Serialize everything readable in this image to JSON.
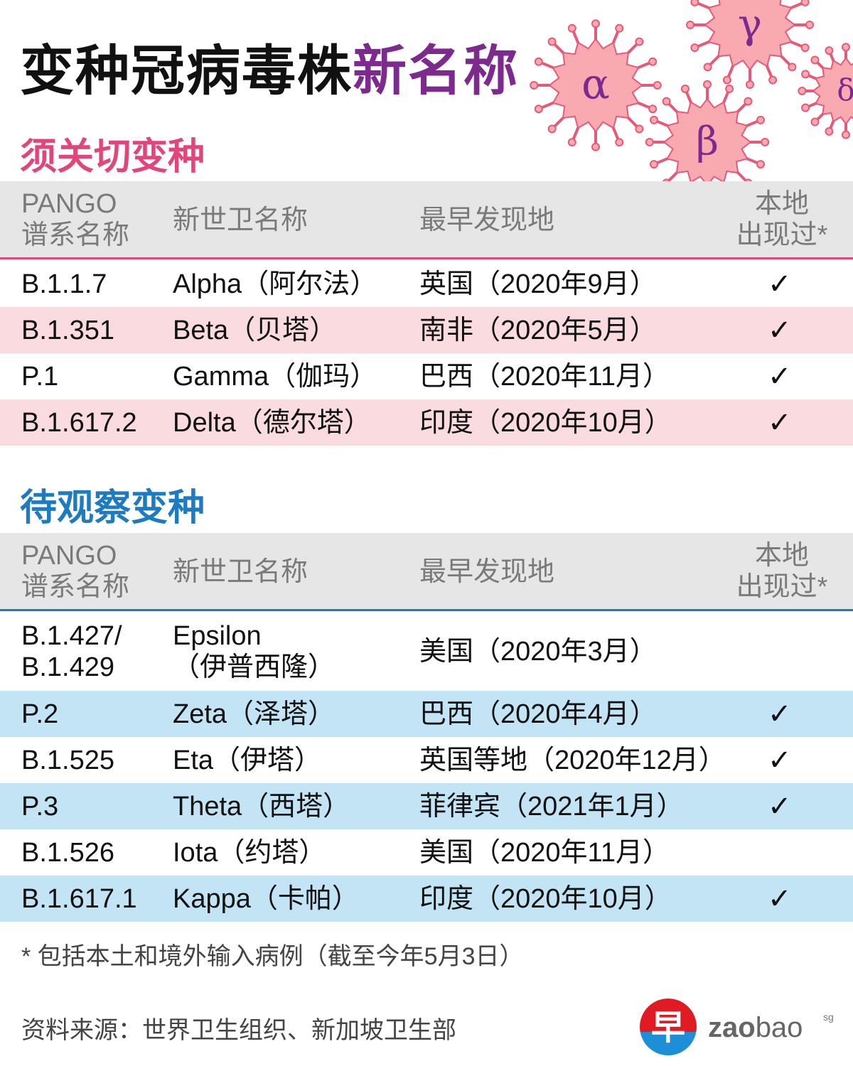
{
  "title": {
    "part1": "变种冠病毒株",
    "part2": "新名称"
  },
  "virus_letters": [
    "α",
    "β",
    "γ",
    "δ"
  ],
  "colors": {
    "accent_purple": "#7d2a8e",
    "concern": "#e0457b",
    "concern_row": "#fadbe0",
    "interest": "#1f7bbf",
    "interest_row": "#c2e4f5",
    "header_bg": "#e6e6e6",
    "virus_fill": "#f9a9b0",
    "virus_stroke": "#e65a78"
  },
  "columns": {
    "pango_line1": "PANGO",
    "pango_line2": "谱系名称",
    "who": "新世卫名称",
    "origin": "最早发现地",
    "local_line1": "本地",
    "local_line2": "出现过*"
  },
  "concern": {
    "title": "须关切变种",
    "rows": [
      {
        "pango": "B.1.1.7",
        "who": "Alpha（阿尔法）",
        "origin": "英国（2020年9月）",
        "local": "✓"
      },
      {
        "pango": "B.1.351",
        "who": "Beta（贝塔）",
        "origin": "南非（2020年5月）",
        "local": "✓"
      },
      {
        "pango": "P.1",
        "who": "Gamma（伽玛）",
        "origin": "巴西（2020年11月）",
        "local": "✓"
      },
      {
        "pango": "B.1.617.2",
        "who": "Delta（德尔塔）",
        "origin": "印度（2020年10月）",
        "local": "✓"
      }
    ]
  },
  "interest": {
    "title": "待观察变种",
    "rows": [
      {
        "pango": "B.1.427/",
        "pango2": "B.1.429",
        "who": "Epsilon",
        "who2": "（伊普西隆）",
        "origin": "美国（2020年3月）",
        "local": ""
      },
      {
        "pango": "P.2",
        "who": "Zeta（泽塔）",
        "origin": "巴西（2020年4月）",
        "local": "✓"
      },
      {
        "pango": "B.1.525",
        "who": "Eta（伊塔）",
        "origin": "英国等地（2020年12月）",
        "local": "✓"
      },
      {
        "pango": "P.3",
        "who": "Theta（西塔）",
        "origin": "菲律宾（2021年1月）",
        "local": "✓"
      },
      {
        "pango": "B.1.526",
        "who": "Iota（约塔）",
        "origin": "美国（2020年11月）",
        "local": ""
      },
      {
        "pango": "B.1.617.1",
        "who": "Kappa（卡帕）",
        "origin": "印度（2020年10月）",
        "local": "✓"
      }
    ]
  },
  "footnote": "* 包括本土和境外输入病例（截至今年5月3日）",
  "source": "资料来源：世界卫生组织、新加坡卫生部",
  "logo": {
    "glyph": "早",
    "bold": "zao",
    "light": "bao",
    "sup": "sg"
  }
}
